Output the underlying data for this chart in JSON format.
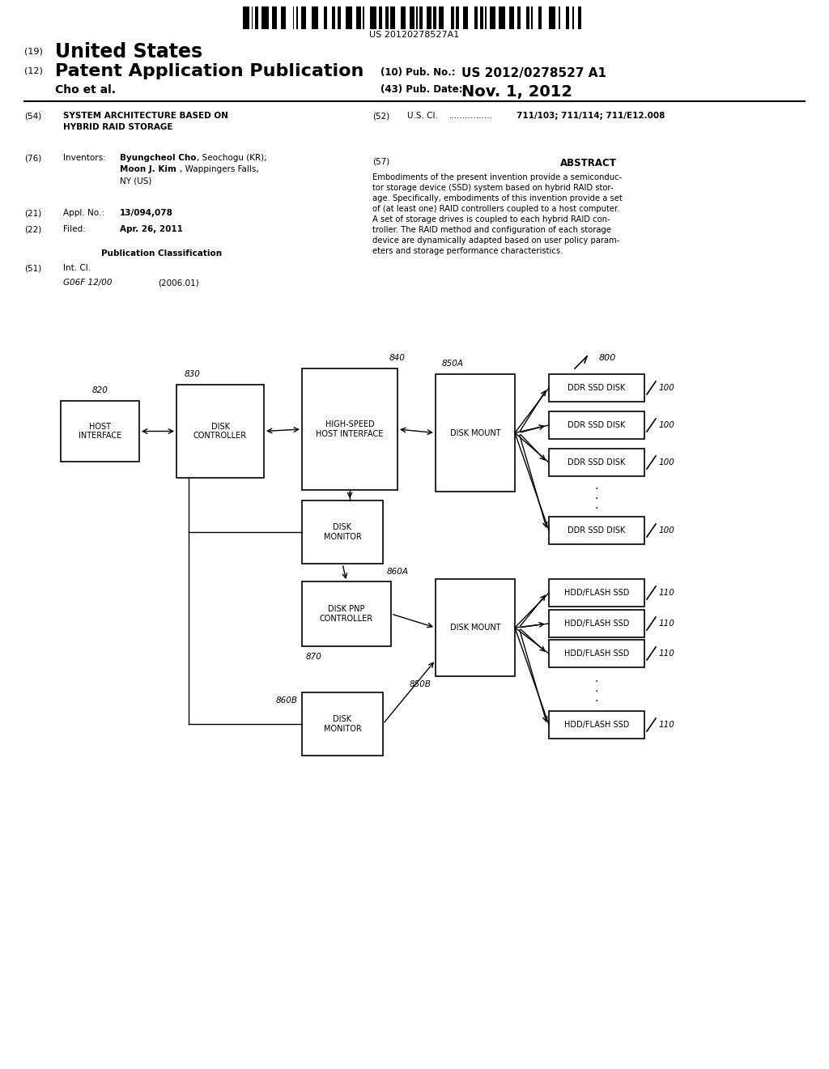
{
  "bg_color": "#ffffff",
  "barcode_text": "US 20120278527A1",
  "header": {
    "line1_num": "(19)",
    "line1_text": "United States",
    "line2_num": "(12)",
    "line2_text": "Patent Application Publication",
    "pub_num_label": "(10) Pub. No.:",
    "pub_num_val": "US 2012/0278527 A1",
    "pub_date_label": "(43) Pub. Date:",
    "pub_date_val": "Nov. 1, 2012",
    "applicant": "Cho et al."
  },
  "abstract_text": "Embodiments of the present invention provide a semiconductor storage device (SSD) system based on hybrid RAID storage. Specifically, embodiments of this invention provide a set of (at least one) RAID controllers coupled to a host computer. A set of storage drives is coupled to each hybrid RAID controller. The RAID method and configuration of each storage device are dynamically adapted based on user policy parameters and storage performance characteristics."
}
